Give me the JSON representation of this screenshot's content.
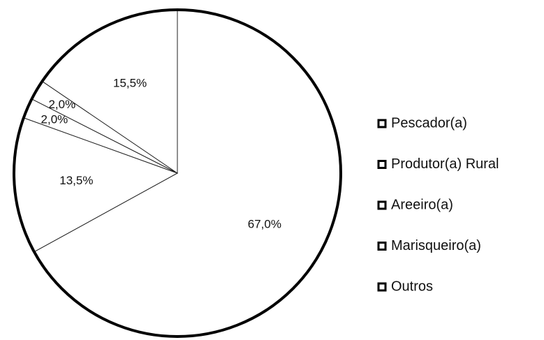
{
  "chart_data": {
    "type": "pie",
    "categories": [
      "Pescador(a)",
      "Produtor(a) Rural",
      "Areeiro(a)",
      "Marisqueiro(a)",
      "Outros"
    ],
    "values": [
      67,
      13.5,
      2,
      2,
      15.5
    ],
    "value_labels": [
      "67,0%",
      "13,5%",
      "2,0%",
      "2,0%",
      "15,5%"
    ],
    "colors": [
      "#ffffff",
      "#ffffff",
      "#ffffff",
      "#ffffff",
      "#ffffff"
    ],
    "legend": "right"
  }
}
